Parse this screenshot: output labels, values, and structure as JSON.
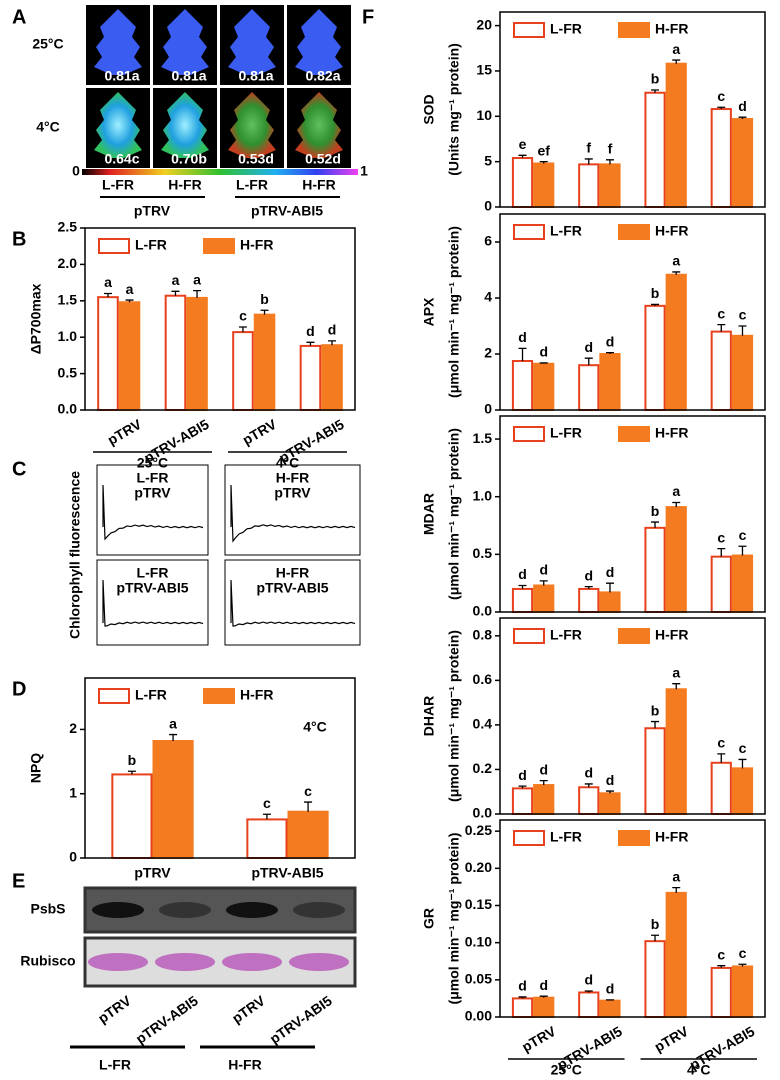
{
  "panel_labels": [
    "A",
    "B",
    "C",
    "D",
    "E",
    "F"
  ],
  "panel_a": {
    "rows": [
      "25°C",
      "4°C"
    ],
    "values": [
      [
        "0.81a",
        "0.81a",
        "0.81a",
        "0.82a"
      ],
      [
        "0.64c",
        "0.70b",
        "0.53d",
        "0.52d"
      ]
    ],
    "colorbar": [
      "0",
      "1"
    ],
    "lanes": [
      "L-FR",
      "H-FR",
      "L-FR",
      "H-FR"
    ],
    "groups": [
      "pTRV",
      "pTRV-ABI5"
    ]
  },
  "panel_c": {
    "ylabel": "Chlorophyll fluorescence",
    "traces": [
      [
        "L-FR",
        "pTRV"
      ],
      [
        "H-FR",
        "pTRV"
      ],
      [
        "L-FR",
        "pTRV-ABI5"
      ],
      [
        "H-FR",
        "pTRV-ABI5"
      ]
    ]
  },
  "panel_e": {
    "rows": [
      "PsbS",
      "Rubisco"
    ],
    "lanes": [
      "pTRV",
      "pTRV-ABI5",
      "pTRV",
      "pTRV-ABI5"
    ],
    "groups": [
      "L-FR",
      "H-FR"
    ]
  },
  "chart_data": [
    {
      "type": "bar",
      "ylabel": "ΔP700max",
      "categories": [
        "pTRV",
        "pTRV-ABI5",
        "pTRV",
        "pTRV-ABI5"
      ],
      "groups": [
        "25°C",
        "4°C"
      ],
      "xtick_rotation": 30,
      "ylim": [
        0,
        2.5
      ],
      "yticks": [
        {
          "value": 0,
          "label": "0.0"
        },
        0.5,
        {
          "value": 1,
          "label": "1.0"
        },
        1.5,
        {
          "value": 2,
          "label": "2.0"
        },
        2.5
      ],
      "series": [
        {
          "name": "L-FR",
          "color": "#e8401c",
          "values": [
            1.55,
            1.57,
            1.07,
            0.88
          ],
          "errors": [
            0.05,
            0.06,
            0.07,
            0.05
          ],
          "letters": [
            "a",
            "a",
            "c",
            "d"
          ]
        },
        {
          "name": "H-FR",
          "color": "#f47b20",
          "values": [
            1.48,
            1.54,
            1.31,
            0.89
          ],
          "errors": [
            0.03,
            0.1,
            0.06,
            0.06
          ],
          "letters": [
            "a",
            "a",
            "b",
            "d"
          ]
        }
      ]
    },
    {
      "type": "bar",
      "ylabel": "NPQ",
      "annotation": "4°C",
      "categories": [
        "pTRV",
        "pTRV-ABI5"
      ],
      "ylim": [
        0,
        2.8
      ],
      "yticks": [
        0,
        1,
        2
      ],
      "series": [
        {
          "name": "L-FR",
          "color": "#e8401c",
          "values": [
            1.3,
            0.6
          ],
          "errors": [
            0.05,
            0.08
          ],
          "letters": [
            "b",
            "c"
          ]
        },
        {
          "name": "H-FR",
          "color": "#f47b20",
          "values": [
            1.82,
            0.72
          ],
          "errors": [
            0.1,
            0.15
          ],
          "letters": [
            "a",
            "c"
          ]
        }
      ]
    },
    {
      "type": "bar",
      "ylabel": "SOD",
      "yunit": "(Units mg⁻¹ protein)",
      "categories": [
        "",
        "",
        "",
        ""
      ],
      "ylim": [
        0,
        21.5
      ],
      "yticks": [
        0,
        5,
        10,
        15,
        20
      ],
      "series": [
        {
          "name": "L-FR",
          "color": "#e8401c",
          "values": [
            5.4,
            4.7,
            12.6,
            10.8
          ],
          "errors": [
            0.3,
            0.6,
            0.3,
            0.2
          ],
          "letters": [
            "e",
            "f",
            "b",
            "c"
          ]
        },
        {
          "name": "H-FR",
          "color": "#f47b20",
          "values": [
            4.8,
            4.7,
            15.8,
            9.7
          ],
          "errors": [
            0.2,
            0.5,
            0.4,
            0.2
          ],
          "letters": [
            "ef",
            "f",
            "a",
            "d"
          ]
        }
      ]
    },
    {
      "type": "bar",
      "ylabel": "APX",
      "yunit": "(μmol min⁻¹ mg⁻¹ protein)",
      "categories": [
        "",
        "",
        "",
        ""
      ],
      "ylim": [
        0,
        7
      ],
      "yticks": [
        0,
        2,
        4,
        6
      ],
      "series": [
        {
          "name": "L-FR",
          "color": "#e8401c",
          "values": [
            1.75,
            1.6,
            3.72,
            2.8
          ],
          "errors": [
            0.45,
            0.25,
            0.05,
            0.25
          ],
          "letters": [
            "d",
            "d",
            "b",
            "c"
          ]
        },
        {
          "name": "H-FR",
          "color": "#f47b20",
          "values": [
            1.65,
            2.0,
            4.83,
            2.65
          ],
          "errors": [
            0.03,
            0.05,
            0.1,
            0.35
          ],
          "letters": [
            "d",
            "d",
            "a",
            "c"
          ]
        }
      ]
    },
    {
      "type": "bar",
      "ylabel": "MDAR",
      "yunit": "(μmol min⁻¹ mg⁻¹ protein)",
      "categories": [
        "",
        "",
        "",
        ""
      ],
      "ylim": [
        0,
        1.7
      ],
      "yticks": [
        {
          "value": 0,
          "label": "0.0"
        },
        0.5,
        {
          "value": 1,
          "label": "1.0"
        },
        1.5
      ],
      "series": [
        {
          "name": "L-FR",
          "color": "#e8401c",
          "values": [
            0.2,
            0.2,
            0.73,
            0.48
          ],
          "errors": [
            0.03,
            0.02,
            0.05,
            0.07
          ],
          "letters": [
            "d",
            "d",
            "b",
            "c"
          ]
        },
        {
          "name": "H-FR",
          "color": "#f47b20",
          "values": [
            0.23,
            0.17,
            0.91,
            0.49
          ],
          "errors": [
            0.04,
            0.08,
            0.04,
            0.08
          ],
          "letters": [
            "d",
            "d",
            "a",
            "c"
          ]
        }
      ]
    },
    {
      "type": "bar",
      "ylabel": "DHAR",
      "yunit": "(μmol min⁻¹ mg⁻¹ protein)",
      "categories": [
        "",
        "",
        "",
        ""
      ],
      "ylim": [
        0,
        0.88
      ],
      "yticks": [
        {
          "value": 0,
          "label": "0.0"
        },
        0.2,
        0.4,
        0.6,
        0.8
      ],
      "series": [
        {
          "name": "L-FR",
          "color": "#e8401c",
          "values": [
            0.115,
            0.12,
            0.385,
            0.23
          ],
          "errors": [
            0.01,
            0.015,
            0.03,
            0.04
          ],
          "letters": [
            "d",
            "d",
            "b",
            "c"
          ]
        },
        {
          "name": "H-FR",
          "color": "#f47b20",
          "values": [
            0.13,
            0.093,
            0.56,
            0.205
          ],
          "errors": [
            0.02,
            0.01,
            0.025,
            0.04
          ],
          "letters": [
            "d",
            "d",
            "a",
            "c"
          ]
        }
      ]
    },
    {
      "type": "bar",
      "ylabel": "GR",
      "yunit": "(μmol min⁻¹ mg⁻¹ protein)",
      "categories": [
        "pTRV",
        "pTRV-ABI5",
        "pTRV",
        "pTRV-ABI5"
      ],
      "groups": [
        "25°C",
        "4°C"
      ],
      "xtick_rotation": 30,
      "ylim": [
        0,
        0.265
      ],
      "yticks": [
        {
          "value": 0,
          "label": "0.00"
        },
        {
          "value": 0.05,
          "label": "0.05"
        },
        {
          "value": 0.1,
          "label": "0.10"
        },
        {
          "value": 0.15,
          "label": "0.15"
        },
        {
          "value": 0.2,
          "label": "0.20"
        },
        {
          "value": 0.25,
          "label": "0.25"
        }
      ],
      "series": [
        {
          "name": "L-FR",
          "color": "#e8401c",
          "values": [
            0.025,
            0.033,
            0.102,
            0.066
          ],
          "errors": [
            0.002,
            0.002,
            0.008,
            0.003
          ],
          "letters": [
            "d",
            "d",
            "b",
            "c"
          ]
        },
        {
          "name": "H-FR",
          "color": "#f47b20",
          "values": [
            0.026,
            0.022,
            0.167,
            0.068
          ],
          "errors": [
            0.002,
            0.001,
            0.007,
            0.003
          ],
          "letters": [
            "d",
            "d",
            "a",
            "c"
          ]
        }
      ]
    }
  ]
}
